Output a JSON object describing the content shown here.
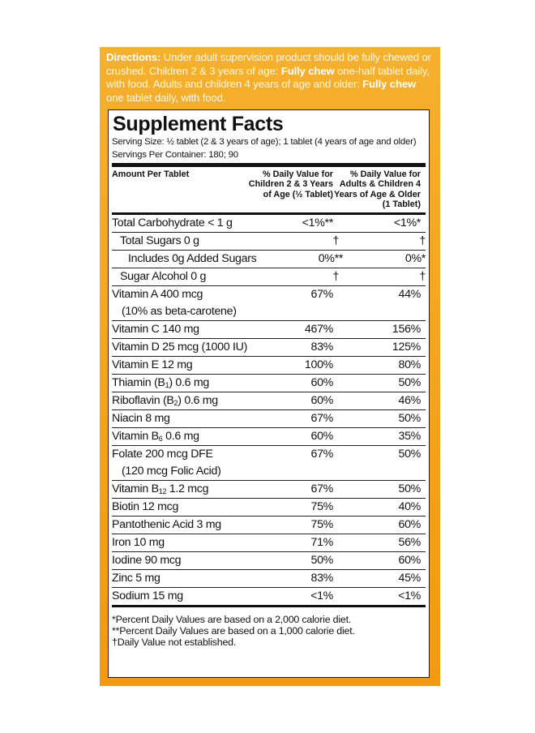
{
  "directions": {
    "lead": "Directions:",
    "text1": " Under adult supervision product should be fully chewed or crushed. Children 2 & 3 years of age: ",
    "bold1": "Fully chew",
    "text2": " one-half tablet daily, with food. Adults and children 4 years of age and older: ",
    "bold2": "Fully chew",
    "text3": " one tablet daily, with food."
  },
  "facts": {
    "title": "Supplement Facts",
    "serving_size": "Serving Size: ½ tablet (2 & 3 years of age); 1 tablet (4 years of age and older)",
    "servings_per_container": "Servings Per Container: 180; 90",
    "header": {
      "amount": "Amount Per Tablet",
      "col_child": "% Daily Value for Children 2 & 3 Years of Age (½ Tablet)",
      "col_adult": "% Daily Value for Adults & Children 4 Years of Age & Older (1 Tablet)"
    },
    "rows": [
      {
        "name": "Total Carbohydrate < 1 g",
        "child": "<1%**",
        "adult": "<1%*"
      },
      {
        "name": "Total Sugars 0 g",
        "child": "†",
        "adult": "†"
      },
      {
        "name": "Includes 0g Added Sugars",
        "child": "0%**",
        "adult": "0%*"
      },
      {
        "name": "Sugar Alcohol 0 g",
        "child": "†",
        "adult": "†"
      },
      {
        "name": "Vitamin A 400 mcg",
        "sub": "(10% as beta-carotene)",
        "child": "67%",
        "adult": "44%"
      },
      {
        "name": "Vitamin C 140 mg",
        "child": "467%",
        "adult": "156%"
      },
      {
        "name": "Vitamin D 25 mcg (1000 IU)",
        "child": "83%",
        "adult": "125%"
      },
      {
        "name": "Vitamin E 12 mg",
        "child": "100%",
        "adult": "80%"
      },
      {
        "name": "Thiamin (B",
        "subscript": "1",
        "name_after": ") 0.6 mg",
        "child": "60%",
        "adult": "50%"
      },
      {
        "name": "Riboflavin (B",
        "subscript": "2",
        "name_after": ") 0.6 mg",
        "child": "60%",
        "adult": "46%"
      },
      {
        "name": "Niacin 8 mg",
        "child": "67%",
        "adult": "50%"
      },
      {
        "name": "Vitamin B",
        "subscript": "6",
        "name_after": " 0.6 mg",
        "child": "60%",
        "adult": "35%"
      },
      {
        "name": "Folate 200 mcg DFE",
        "sub": "(120 mcg Folic Acid)",
        "child": "67%",
        "adult": "50%"
      },
      {
        "name": "Vitamin B",
        "subscript": "12",
        "name_after": " 1.2 mcg",
        "child": "67%",
        "adult": "50%"
      },
      {
        "name": "Biotin 12 mcg",
        "child": "75%",
        "adult": "40%"
      },
      {
        "name": "Pantothenic Acid 3 mg",
        "child": "75%",
        "adult": "60%"
      },
      {
        "name": "Iron 10 mg",
        "child": "71%",
        "adult": "56%"
      },
      {
        "name": "Iodine 90 mcg",
        "child": "50%",
        "adult": "60%"
      },
      {
        "name": "Zinc 5 mg",
        "child": "83%",
        "adult": "45%"
      },
      {
        "name": "Sodium 15 mg",
        "child": "<1%",
        "adult": "<1%"
      }
    ],
    "footnotes": [
      "*Percent Daily Values are based on a 2,000 calorie diet.",
      "**Percent Daily Values are based on a 1,000 calorie diet.",
      "†Daily Value not established."
    ]
  }
}
